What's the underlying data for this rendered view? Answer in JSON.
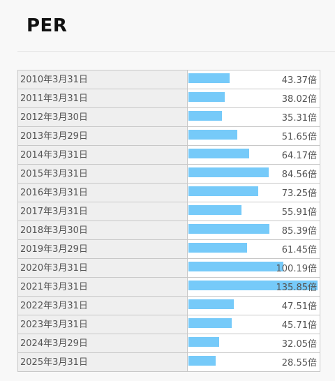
{
  "title": "PER",
  "colors": {
    "bar": "#76caf9"
  },
  "chart_data": {
    "type": "bar",
    "orientation": "horizontal",
    "title": "PER",
    "unit": "倍",
    "max_value": 135.85,
    "categories": [
      "2010年3月31日",
      "2011年3月31日",
      "2012年3月30日",
      "2013年3月29日",
      "2014年3月31日",
      "2015年3月31日",
      "2016年3月31日",
      "2017年3月31日",
      "2018年3月30日",
      "2019年3月29日",
      "2020年3月31日",
      "2021年3月31日",
      "2022年3月31日",
      "2023年3月31日",
      "2024年3月29日",
      "2025年3月31日"
    ],
    "values": [
      43.37,
      38.02,
      35.31,
      51.65,
      64.17,
      84.56,
      73.25,
      55.91,
      85.39,
      61.45,
      100.19,
      135.85,
      47.51,
      45.71,
      32.05,
      28.55
    ],
    "labels": [
      "43.37倍",
      "38.02倍",
      "35.31倍",
      "51.65倍",
      "64.17倍",
      "84.56倍",
      "73.25倍",
      "55.91倍",
      "85.39倍",
      "61.45倍",
      "100.19倍",
      "135.85倍",
      "47.51倍",
      "45.71倍",
      "32.05倍",
      "28.55倍"
    ]
  }
}
